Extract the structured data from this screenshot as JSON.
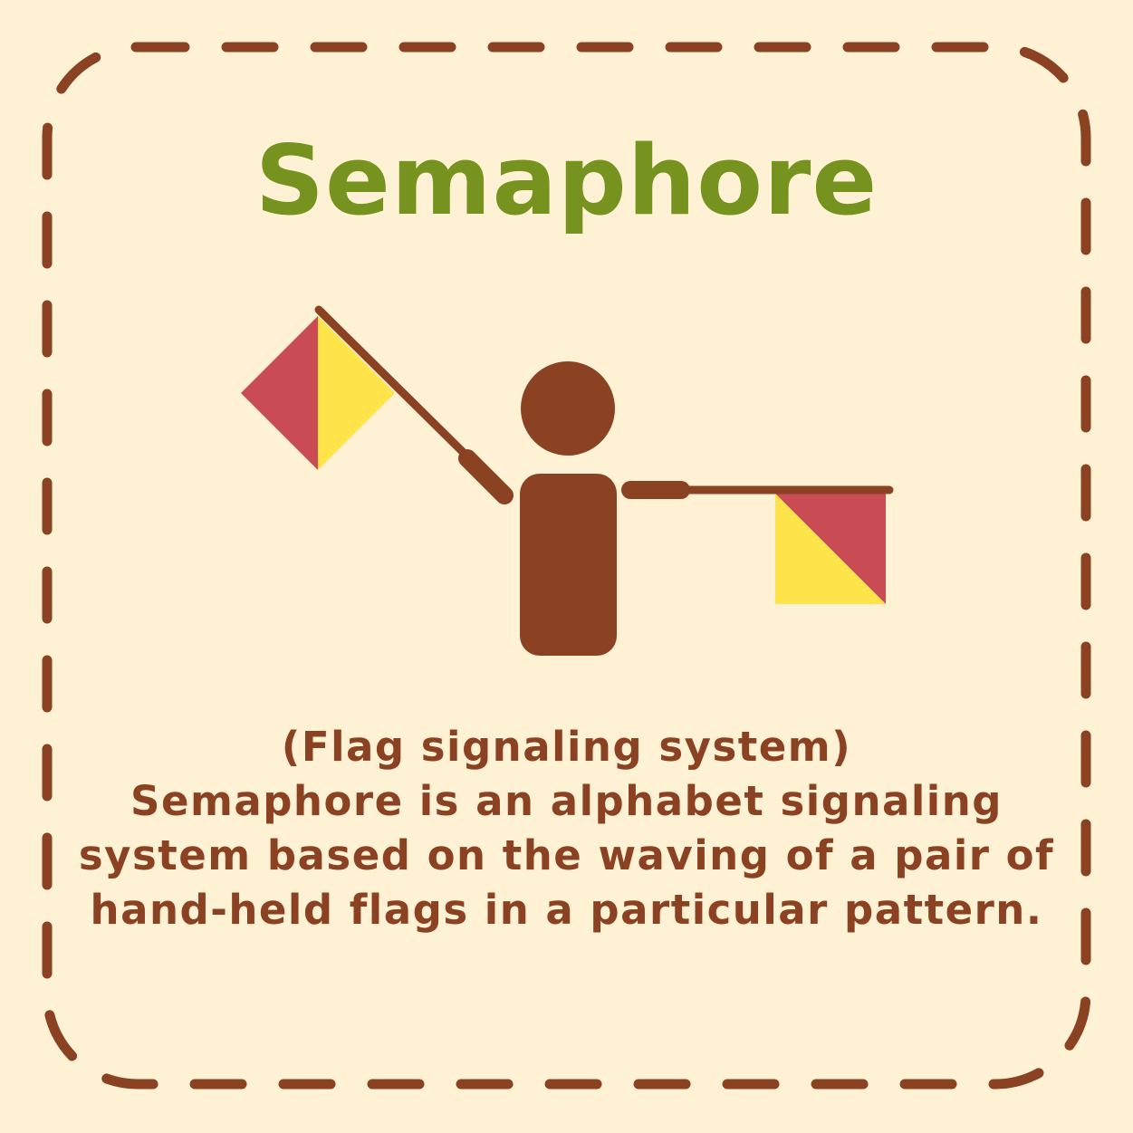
{
  "colors": {
    "background": "#FEF1D4",
    "border": "#8B4222",
    "title": "#76921F",
    "text": "#8B4222",
    "figure": "#8B4222",
    "flag_red": "#C94C55",
    "flag_yellow": "#FFE34A"
  },
  "title": "Semaphore",
  "caption": {
    "subtitle": "(Flag signaling system)",
    "lines": [
      "Semaphore is an alphabet signaling",
      "system based on the waving of a pair of",
      "hand-held flags in a particular pattern."
    ]
  },
  "icons": {
    "figure": "person-icon",
    "left_flag": "semaphore-flag-icon",
    "right_flag": "semaphore-flag-icon"
  }
}
